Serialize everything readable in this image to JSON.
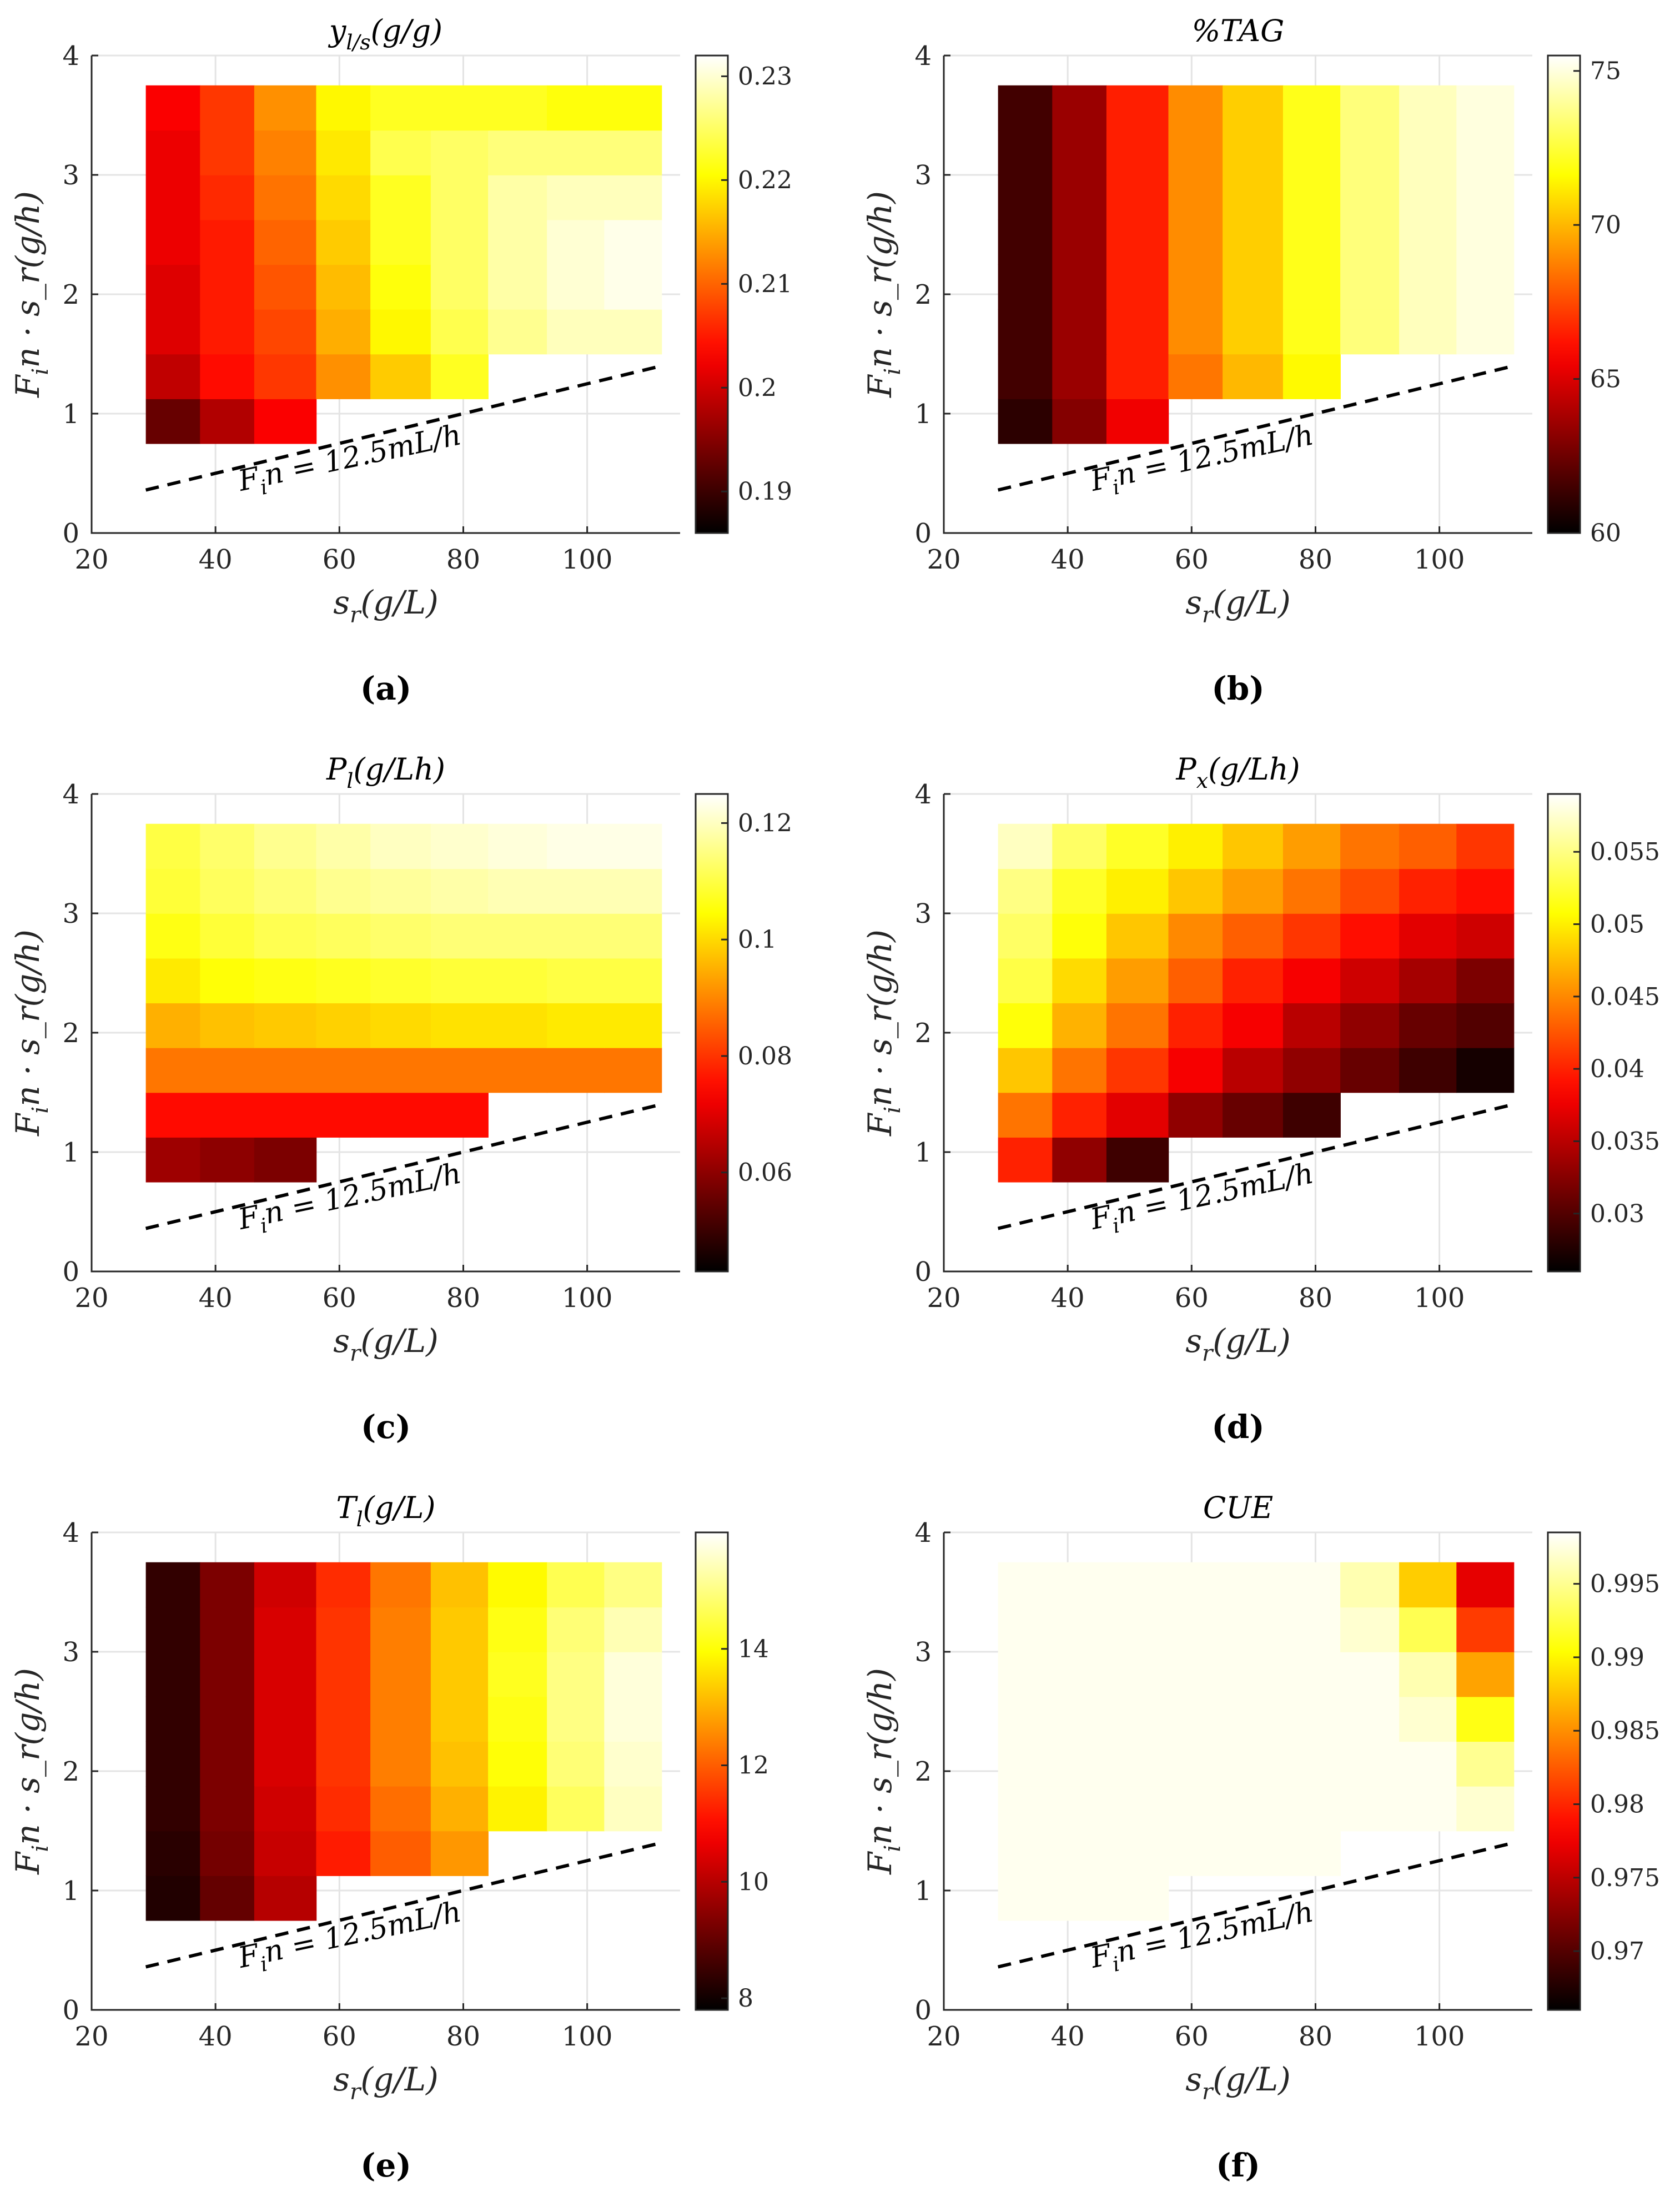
{
  "figure": {
    "captions": [
      "(a)",
      "(b)",
      "(c)",
      "(d)",
      "(e)",
      "(f)"
    ],
    "annotation": "F_in = 12.5mL/h",
    "xlabel": "s_r(g/L)",
    "ylabel": "F_in · s_r(g/h)"
  },
  "chart_data": [
    {
      "type": "heatmap",
      "id": "a",
      "title": "y_{l/s}(g/g)",
      "xlabel": "s_r(g/L)",
      "ylabel": "F_in · s_r(g/h)",
      "xlim": [
        20,
        115
      ],
      "ylim": [
        0,
        4
      ],
      "xticks": [
        20,
        40,
        60,
        80,
        100
      ],
      "yticks": [
        0,
        1,
        2,
        3,
        4
      ],
      "x_edges": [
        28.75,
        37.5,
        46.25,
        56.25,
        65,
        74.75,
        84,
        93.5,
        102.75,
        112
      ],
      "y_edges": [
        0.75,
        1.125,
        1.5,
        1.875,
        2.25,
        2.625,
        3.0,
        3.375,
        3.75
      ],
      "colorbar": {
        "min": 0.186,
        "max": 0.232,
        "ticks": [
          0.19,
          0.2,
          0.21,
          0.22,
          0.23
        ],
        "tick_labels": [
          "0.19",
          "0.2",
          "0.21",
          "0.22",
          "0.23"
        ]
      },
      "values": [
        [
          0.193,
          0.198,
          0.203,
          null,
          null,
          null,
          null,
          null,
          null
        ],
        [
          0.199,
          0.204,
          0.207,
          0.213,
          0.217,
          0.222,
          null,
          null,
          null
        ],
        [
          0.201,
          0.205,
          0.208,
          0.215,
          0.22,
          0.224,
          0.227,
          0.229,
          0.229
        ],
        [
          0.201,
          0.205,
          0.209,
          0.216,
          0.221,
          0.225,
          0.228,
          0.23,
          0.231
        ],
        [
          0.202,
          0.205,
          0.21,
          0.217,
          0.222,
          0.225,
          0.228,
          0.23,
          0.231
        ],
        [
          0.202,
          0.206,
          0.211,
          0.218,
          0.222,
          0.225,
          0.228,
          0.229,
          0.229
        ],
        [
          0.202,
          0.207,
          0.212,
          0.219,
          0.224,
          0.225,
          0.226,
          0.226,
          0.226
        ],
        [
          0.203,
          0.207,
          0.213,
          0.22,
          0.222,
          0.222,
          0.222,
          0.221,
          0.221
        ]
      ]
    },
    {
      "type": "heatmap",
      "id": "b",
      "title": "%TAG",
      "xlabel": "s_r(g/L)",
      "ylabel": "F_in · s_r(g/h)",
      "xlim": [
        20,
        115
      ],
      "ylim": [
        0,
        4
      ],
      "xticks": [
        20,
        40,
        60,
        80,
        100
      ],
      "yticks": [
        0,
        1,
        2,
        3,
        4
      ],
      "x_edges": [
        28.75,
        37.5,
        46.25,
        56.25,
        65,
        74.75,
        84,
        93.5,
        102.75,
        112
      ],
      "y_edges": [
        0.75,
        1.125,
        1.5,
        1.875,
        2.25,
        2.625,
        3.0,
        3.375,
        3.75
      ],
      "colorbar": {
        "min": 60,
        "max": 75.5,
        "ticks": [
          60,
          65,
          70,
          75
        ],
        "tick_labels": [
          "60",
          "65",
          "70",
          "75"
        ]
      },
      "values": [
        [
          61.0,
          63.0,
          65.5,
          null,
          null,
          null,
          null,
          null,
          null
        ],
        [
          61.5,
          63.5,
          66.5,
          68.5,
          70.0,
          71.5,
          null,
          null,
          null
        ],
        [
          61.5,
          63.5,
          66.5,
          69.0,
          70.5,
          72.0,
          73.5,
          74.5,
          75.0
        ],
        [
          61.5,
          63.5,
          66.5,
          69.0,
          70.5,
          72.0,
          73.5,
          74.5,
          75.0
        ],
        [
          61.5,
          63.5,
          66.5,
          69.0,
          70.5,
          72.0,
          73.5,
          74.5,
          75.0
        ],
        [
          61.5,
          63.5,
          66.5,
          69.0,
          70.5,
          72.0,
          73.5,
          74.5,
          75.0
        ],
        [
          61.5,
          63.5,
          66.5,
          69.0,
          70.5,
          72.0,
          73.5,
          74.5,
          75.0
        ],
        [
          61.5,
          63.5,
          66.5,
          69.0,
          70.5,
          72.0,
          73.5,
          74.5,
          75.0
        ]
      ]
    },
    {
      "type": "heatmap",
      "id": "c",
      "title": "P_l(g/Lh)",
      "xlabel": "s_r(g/L)",
      "ylabel": "F_in · s_r(g/h)",
      "xlim": [
        20,
        115
      ],
      "ylim": [
        0,
        4
      ],
      "xticks": [
        20,
        40,
        60,
        80,
        100
      ],
      "yticks": [
        0,
        1,
        2,
        3,
        4
      ],
      "x_edges": [
        28.75,
        37.5,
        46.25,
        56.25,
        65,
        74.75,
        84,
        93.5,
        102.75,
        112
      ],
      "y_edges": [
        0.75,
        1.125,
        1.5,
        1.875,
        2.25,
        2.625,
        3.0,
        3.375,
        3.75
      ],
      "colorbar": {
        "min": 0.043,
        "max": 0.125,
        "ticks": [
          0.06,
          0.08,
          0.1,
          0.12
        ],
        "tick_labels": [
          "0.06",
          "0.08",
          "0.1",
          "0.12"
        ]
      },
      "values": [
        [
          0.062,
          0.06,
          0.058,
          null,
          null,
          null,
          null,
          null,
          null
        ],
        [
          0.075,
          0.075,
          0.075,
          0.075,
          0.075,
          0.075,
          null,
          null,
          null
        ],
        [
          0.088,
          0.088,
          0.088,
          0.088,
          0.088,
          0.088,
          0.088,
          0.088,
          0.088
        ],
        [
          0.095,
          0.097,
          0.098,
          0.099,
          0.1,
          0.101,
          0.101,
          0.102,
          0.102
        ],
        [
          0.102,
          0.105,
          0.106,
          0.107,
          0.108,
          0.109,
          0.109,
          0.11,
          0.11
        ],
        [
          0.106,
          0.109,
          0.111,
          0.112,
          0.113,
          0.114,
          0.114,
          0.114,
          0.114
        ],
        [
          0.109,
          0.112,
          0.114,
          0.116,
          0.117,
          0.118,
          0.119,
          0.119,
          0.119
        ],
        [
          0.11,
          0.113,
          0.116,
          0.118,
          0.12,
          0.121,
          0.122,
          0.123,
          0.123
        ]
      ]
    },
    {
      "type": "heatmap",
      "id": "d",
      "title": "P_x(g/Lh)",
      "xlabel": "s_r(g/L)",
      "ylabel": "F_in · s_r(g/h)",
      "xlim": [
        20,
        115
      ],
      "ylim": [
        0,
        4
      ],
      "xticks": [
        20,
        40,
        60,
        80,
        100
      ],
      "yticks": [
        0,
        1,
        2,
        3,
        4
      ],
      "x_edges": [
        28.75,
        37.5,
        46.25,
        56.25,
        65,
        74.75,
        84,
        93.5,
        102.75,
        112
      ],
      "y_edges": [
        0.75,
        1.125,
        1.5,
        1.875,
        2.25,
        2.625,
        3.0,
        3.375,
        3.75
      ],
      "colorbar": {
        "min": 0.026,
        "max": 0.059,
        "ticks": [
          0.03,
          0.035,
          0.04,
          0.045,
          0.05,
          0.055
        ],
        "tick_labels": [
          "0.03",
          "0.035",
          "0.04",
          "0.045",
          "0.05",
          "0.055"
        ]
      },
      "values": [
        [
          0.04,
          0.033,
          0.029,
          null,
          null,
          null,
          null,
          null,
          null
        ],
        [
          0.044,
          0.04,
          0.037,
          0.033,
          0.031,
          0.029,
          null,
          null,
          null
        ],
        [
          0.048,
          0.044,
          0.041,
          0.038,
          0.035,
          0.033,
          0.031,
          0.029,
          0.027
        ],
        [
          0.051,
          0.047,
          0.044,
          0.04,
          0.038,
          0.035,
          0.033,
          0.031,
          0.03
        ],
        [
          0.053,
          0.049,
          0.046,
          0.043,
          0.04,
          0.038,
          0.036,
          0.034,
          0.032
        ],
        [
          0.054,
          0.051,
          0.048,
          0.045,
          0.043,
          0.041,
          0.039,
          0.037,
          0.036
        ],
        [
          0.055,
          0.052,
          0.05,
          0.048,
          0.046,
          0.044,
          0.042,
          0.04,
          0.039
        ],
        [
          0.057,
          0.054,
          0.052,
          0.05,
          0.048,
          0.046,
          0.044,
          0.043,
          0.041
        ]
      ]
    },
    {
      "type": "heatmap",
      "id": "e",
      "title": "T_l(g/L)",
      "xlabel": "s_r(g/L)",
      "ylabel": "F_in · s_r(g/h)",
      "xlim": [
        20,
        115
      ],
      "ylim": [
        0,
        4
      ],
      "xticks": [
        20,
        40,
        60,
        80,
        100
      ],
      "yticks": [
        0,
        1,
        2,
        3,
        4
      ],
      "x_edges": [
        28.75,
        37.5,
        46.25,
        56.25,
        65,
        74.75,
        84,
        93.5,
        102.75,
        112
      ],
      "y_edges": [
        0.75,
        1.125,
        1.5,
        1.875,
        2.25,
        2.625,
        3.0,
        3.375,
        3.75
      ],
      "colorbar": {
        "min": 7.8,
        "max": 16.0,
        "ticks": [
          8,
          10,
          12,
          14
        ],
        "tick_labels": [
          "8",
          "10",
          "12",
          "14"
        ]
      },
      "values": [
        [
          8.2,
          9.0,
          10.0,
          null,
          null,
          null,
          null,
          null,
          null
        ],
        [
          8.3,
          9.2,
          10.2,
          11.2,
          12.0,
          12.7,
          null,
          null,
          null
        ],
        [
          8.4,
          9.3,
          10.3,
          11.4,
          12.2,
          13.0,
          13.8,
          14.7,
          15.5
        ],
        [
          8.4,
          9.3,
          10.4,
          11.5,
          12.4,
          13.2,
          14.0,
          14.9,
          15.6
        ],
        [
          8.4,
          9.3,
          10.4,
          11.5,
          12.4,
          13.3,
          14.1,
          15.0,
          15.7
        ],
        [
          8.4,
          9.3,
          10.4,
          11.5,
          12.4,
          13.3,
          14.2,
          15.0,
          15.7
        ],
        [
          8.4,
          9.3,
          10.4,
          11.5,
          12.4,
          13.3,
          14.1,
          14.9,
          15.4
        ],
        [
          8.4,
          9.3,
          10.3,
          11.4,
          12.3,
          13.2,
          13.9,
          14.6,
          15.0
        ]
      ]
    },
    {
      "type": "heatmap",
      "id": "f",
      "title": "CUE",
      "xlabel": "s_r(g/L)",
      "ylabel": "F_in · s_r(g/h)",
      "xlim": [
        20,
        115
      ],
      "ylim": [
        0,
        4
      ],
      "xticks": [
        20,
        40,
        60,
        80,
        100
      ],
      "yticks": [
        0,
        1,
        2,
        3,
        4
      ],
      "x_edges": [
        28.75,
        37.5,
        46.25,
        56.25,
        65,
        74.75,
        84,
        93.5,
        102.75,
        112
      ],
      "y_edges": [
        0.75,
        1.125,
        1.5,
        1.875,
        2.25,
        2.625,
        3.0,
        3.375,
        3.75
      ],
      "colorbar": {
        "min": 0.966,
        "max": 0.9985,
        "ticks": [
          0.97,
          0.975,
          0.98,
          0.985,
          0.99,
          0.995
        ],
        "tick_labels": [
          "0.97",
          "0.975",
          "0.98",
          "0.985",
          "0.99",
          "0.995"
        ]
      },
      "values": [
        [
          0.998,
          0.998,
          0.998,
          null,
          null,
          null,
          null,
          null,
          null
        ],
        [
          0.998,
          0.998,
          0.998,
          0.998,
          0.998,
          0.998,
          null,
          null,
          null
        ],
        [
          0.998,
          0.998,
          0.998,
          0.998,
          0.998,
          0.998,
          0.998,
          0.998,
          0.997
        ],
        [
          0.998,
          0.998,
          0.998,
          0.998,
          0.998,
          0.998,
          0.998,
          0.998,
          0.995
        ],
        [
          0.998,
          0.998,
          0.998,
          0.998,
          0.998,
          0.998,
          0.998,
          0.997,
          0.991
        ],
        [
          0.998,
          0.998,
          0.998,
          0.998,
          0.998,
          0.998,
          0.998,
          0.996,
          0.986
        ],
        [
          0.998,
          0.998,
          0.998,
          0.998,
          0.998,
          0.998,
          0.997,
          0.993,
          0.981
        ],
        [
          0.998,
          0.998,
          0.998,
          0.998,
          0.998,
          0.998,
          0.996,
          0.988,
          0.977
        ]
      ]
    }
  ]
}
